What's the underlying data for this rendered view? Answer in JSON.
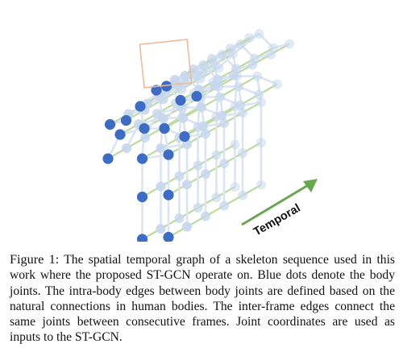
{
  "figure": {
    "arrow_label": "Temporal",
    "colors": {
      "joint_front": "#3d6cc6",
      "joint_faded": "#c6d6ee",
      "intra_edge": "#dae4f3",
      "temporal_edge": "#bcdca0",
      "arrow": "#6aa84f",
      "highlight_box": "#f0b99a"
    }
  },
  "caption": {
    "lead": "Figure 1:",
    "text": " The spatial temporal graph of a skeleton sequence used in this work where the proposed ST-GCN operate on. Blue dots denote the body joints. The intra-body edges between body joints are defined based on the natural connections in human bodies. The inter-frame edges connect the same joints between consecutive frames. Joint coordinates are used as inputs to the ST-GCN."
  }
}
